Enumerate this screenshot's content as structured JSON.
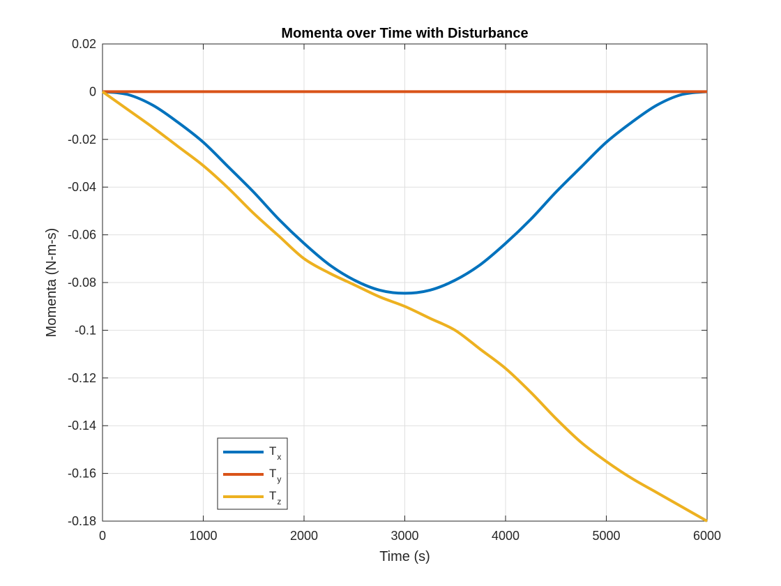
{
  "chart_data": {
    "type": "line",
    "title": "Momenta over Time with Disturbance",
    "xlabel": "Time (s)",
    "ylabel": "Momenta (N-m-s)",
    "xlim": [
      0,
      6000
    ],
    "ylim": [
      -0.18,
      0.02
    ],
    "xticks": [
      0,
      1000,
      2000,
      3000,
      4000,
      5000,
      6000
    ],
    "xtick_labels": [
      "0",
      "1000",
      "2000",
      "3000",
      "4000",
      "5000",
      "6000"
    ],
    "yticks": [
      0.02,
      0,
      -0.02,
      -0.04,
      -0.06,
      -0.08,
      -0.1,
      -0.12,
      -0.14,
      -0.16,
      -0.18
    ],
    "ytick_labels": [
      "0.02",
      "0",
      "-0.02",
      "-0.04",
      "-0.06",
      "-0.08",
      "-0.1",
      "-0.12",
      "-0.14",
      "-0.16",
      "-0.18"
    ],
    "grid": true,
    "legend_position": "lower-left",
    "x": [
      0,
      250,
      500,
      750,
      1000,
      1250,
      1500,
      1750,
      2000,
      2250,
      2500,
      2750,
      3000,
      3250,
      3500,
      3750,
      4000,
      4250,
      4500,
      4750,
      5000,
      5250,
      5500,
      5750,
      6000
    ],
    "series": [
      {
        "label_main": "T",
        "label_sub": "x",
        "color": "#0072BD",
        "values": [
          0,
          -0.0012,
          -0.0057,
          -0.0129,
          -0.0212,
          -0.0316,
          -0.0421,
          -0.0535,
          -0.0636,
          -0.0725,
          -0.079,
          -0.0832,
          -0.0845,
          -0.0832,
          -0.079,
          -0.0725,
          -0.0636,
          -0.0535,
          -0.0421,
          -0.0316,
          -0.0212,
          -0.0129,
          -0.0057,
          -0.0012,
          0
        ]
      },
      {
        "label_main": "T",
        "label_sub": "y",
        "color": "#D95319",
        "values": [
          0,
          0,
          0,
          0,
          0,
          0,
          0,
          0,
          0,
          0,
          0,
          0,
          0,
          0,
          0,
          0,
          0,
          0,
          0,
          0,
          0,
          0,
          0,
          0,
          0
        ]
      },
      {
        "label_main": "T",
        "label_sub": "z",
        "color": "#EDB120",
        "values": [
          0,
          -0.0075,
          -0.015,
          -0.023,
          -0.031,
          -0.0405,
          -0.051,
          -0.0605,
          -0.07,
          -0.076,
          -0.081,
          -0.086,
          -0.09,
          -0.095,
          -0.1,
          -0.108,
          -0.116,
          -0.126,
          -0.137,
          -0.147,
          -0.155,
          -0.162,
          -0.168,
          -0.174,
          -0.18
        ]
      }
    ]
  }
}
